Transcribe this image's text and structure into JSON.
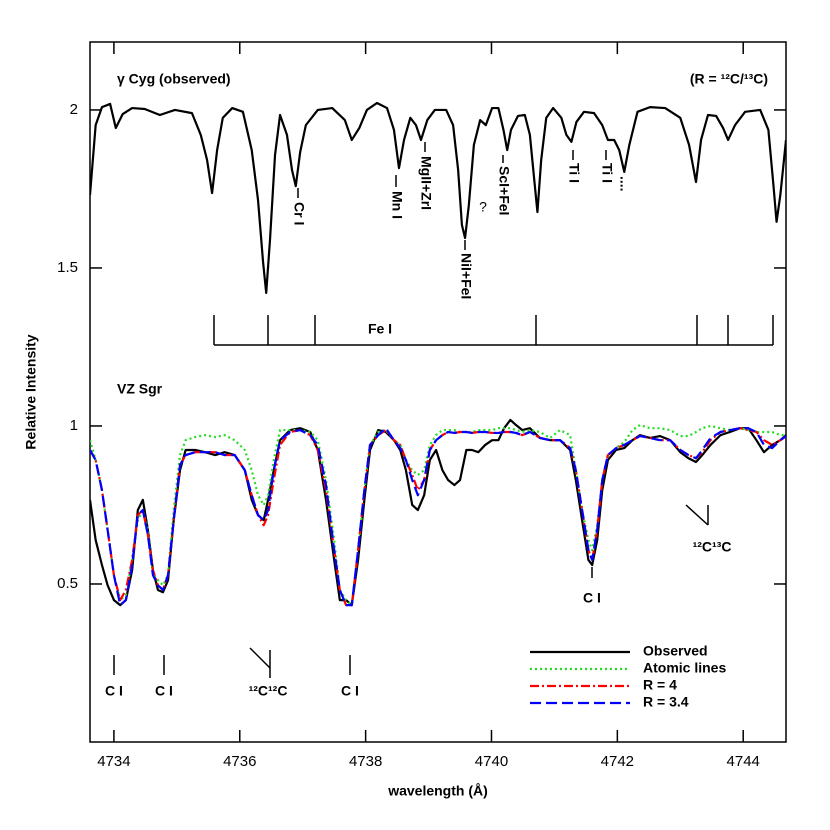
{
  "chart_data": {
    "type": "line",
    "xlabel": "wavelength (Å)",
    "ylabel": "Relative Intensity",
    "xlim": [
      4733.62,
      4744.68
    ],
    "ylim": [
      0,
      2.215
    ],
    "xticks": [
      4734,
      4736,
      4738,
      4740,
      4742,
      4744
    ],
    "yticks": [
      0.5,
      1,
      1.5,
      2
    ],
    "legend": "lower right",
    "annotations": [
      "γ Cyg (observed)",
      "(R = ¹²C/¹³C)",
      "Cr I",
      "Mn I",
      "MgII+ZrI",
      "NiI+FeI",
      "?",
      "ScI+FeI",
      "Ti I",
      "Ti I",
      "....",
      "Fe I",
      "VZ Sgr",
      "C I",
      "C I",
      "¹²C¹²C",
      "C I",
      "C I",
      "¹²C¹³C"
    ],
    "x": [
      4733.62,
      4733.71,
      4733.81,
      4733.9,
      4734.0,
      4734.1,
      4734.19,
      4734.29,
      4734.38,
      4734.46,
      4734.54,
      4734.62,
      4734.7,
      4734.78,
      4734.86,
      4734.95,
      4735.05,
      4735.14,
      4735.29,
      4735.45,
      4735.61,
      4735.76,
      4735.92,
      4736.08,
      4736.19,
      4736.29,
      4736.38,
      4736.45,
      4736.54,
      4736.64,
      4736.8,
      4736.96,
      4737.12,
      4737.24,
      4737.37,
      4737.5,
      4737.59,
      4737.69,
      4737.78,
      4737.88,
      4737.98,
      4738.07,
      4738.2,
      4738.32,
      4738.45,
      4738.55,
      4738.64,
      4738.74,
      4738.83,
      4738.93,
      4739.02,
      4739.12,
      4739.22,
      4739.31,
      4739.41,
      4739.5,
      4739.6,
      4739.69,
      4739.79,
      4739.9,
      4740.01,
      4740.11,
      4740.2,
      4740.3,
      4740.39,
      4740.49,
      4740.61,
      4740.77,
      4740.93,
      4741.09,
      4741.25,
      4741.34,
      4741.44,
      4741.54,
      4741.6,
      4741.68,
      4741.76,
      4741.85,
      4741.98,
      4742.11,
      4742.24,
      4742.36,
      4742.52,
      4742.68,
      4742.84,
      4743.0,
      4743.13,
      4743.25,
      4743.35,
      4743.48,
      4743.64,
      4743.79,
      4743.95,
      4744.08,
      4744.21,
      4744.33,
      4744.46,
      4744.59,
      4744.68
    ],
    "series": [
      {
        "color": "#000000",
        "dash": "solid",
        "x": [
          4733.62,
          4733.71,
          4733.81,
          4733.94,
          4734.03,
          4734.14,
          4734.29,
          4734.49,
          4734.73,
          4734.97,
          4735.24,
          4735.38,
          4735.48,
          4735.56,
          4735.64,
          4735.73,
          4735.88,
          4736.05,
          4736.19,
          4736.29,
          4736.37,
          4736.42,
          4736.48,
          4736.56,
          4736.64,
          4736.75,
          4736.83,
          4736.89,
          4736.96,
          4737.05,
          4737.24,
          4737.47,
          4737.67,
          4737.78,
          4737.9,
          4738.02,
          4738.18,
          4738.34,
          4738.45,
          4738.53,
          4738.61,
          4738.71,
          4738.8,
          4738.88,
          4738.98,
          4739.1,
          4739.28,
          4739.39,
          4739.47,
          4739.53,
          4739.58,
          4739.64,
          4739.72,
          4739.82,
          4739.91,
          4740.01,
          4740.11,
          4740.19,
          4740.25,
          4740.31,
          4740.42,
          4740.53,
          4740.61,
          4740.68,
          4740.73,
          4740.79,
          4740.87,
          4740.98,
          4741.11,
          4741.19,
          4741.27,
          4741.35,
          4741.47,
          4741.63,
          4741.76,
          4741.85,
          4741.95,
          4742.03,
          4742.11,
          4742.19,
          4742.32,
          4742.52,
          4742.76,
          4743.0,
          4743.14,
          4743.25,
          4743.33,
          4743.44,
          4743.57,
          4743.68,
          4743.76,
          4743.87,
          4744.03,
          4744.27,
          4744.4,
          4744.48,
          4744.53,
          4744.59,
          4744.68
        ],
        "values": [
          1.731,
          1.952,
          2.009,
          2.019,
          1.943,
          1.987,
          2.006,
          2.003,
          1.984,
          2.0,
          1.99,
          1.921,
          1.842,
          1.737,
          1.873,
          1.975,
          2.006,
          1.994,
          1.873,
          1.715,
          1.519,
          1.421,
          1.588,
          1.857,
          1.984,
          1.921,
          1.81,
          1.759,
          1.867,
          1.952,
          2.0,
          2.006,
          1.968,
          1.905,
          1.943,
          2.0,
          2.022,
          2.006,
          1.937,
          1.816,
          1.905,
          1.975,
          1.952,
          1.905,
          1.968,
          2.0,
          2.0,
          1.952,
          1.81,
          1.636,
          1.595,
          1.699,
          1.889,
          1.968,
          1.952,
          2.006,
          2.006,
          1.937,
          1.873,
          1.937,
          1.981,
          1.984,
          1.921,
          1.778,
          1.677,
          1.842,
          1.975,
          2.006,
          1.975,
          1.921,
          1.899,
          1.962,
          1.994,
          1.99,
          1.952,
          1.905,
          1.905,
          1.873,
          1.804,
          1.889,
          1.994,
          2.009,
          2.006,
          1.975,
          1.889,
          1.772,
          1.905,
          1.984,
          1.981,
          1.943,
          1.905,
          1.952,
          1.994,
          2.0,
          1.937,
          1.763,
          1.646,
          1.731,
          1.905
        ]
      },
      {
        "name": "Observed",
        "color": "#000000",
        "dash": "solid",
        "values": [
          0.766,
          0.639,
          0.56,
          0.496,
          0.449,
          0.433,
          0.449,
          0.544,
          0.734,
          0.766,
          0.671,
          0.544,
          0.481,
          0.474,
          0.512,
          0.702,
          0.86,
          0.924,
          0.924,
          0.917,
          0.908,
          0.917,
          0.908,
          0.86,
          0.766,
          0.718,
          0.702,
          0.766,
          0.86,
          0.955,
          0.987,
          0.993,
          0.981,
          0.924,
          0.766,
          0.576,
          0.449,
          0.449,
          0.433,
          0.576,
          0.766,
          0.924,
          0.987,
          0.981,
          0.955,
          0.924,
          0.86,
          0.75,
          0.734,
          0.781,
          0.892,
          0.924,
          0.86,
          0.829,
          0.813,
          0.829,
          0.924,
          0.924,
          0.917,
          0.94,
          0.955,
          0.955,
          0.993,
          1.019,
          1.003,
          0.987,
          0.993,
          0.962,
          0.955,
          0.955,
          0.924,
          0.829,
          0.702,
          0.576,
          0.56,
          0.639,
          0.797,
          0.892,
          0.924,
          0.93,
          0.955,
          0.971,
          0.962,
          0.968,
          0.955,
          0.917,
          0.898,
          0.886,
          0.908,
          0.94,
          0.971,
          0.981,
          0.993,
          0.993,
          0.955,
          0.917,
          0.94,
          0.955,
          0.971
        ]
      },
      {
        "name": "Atomic lines",
        "color": "#22dd22",
        "dash": "dotted",
        "values": [
          0.955,
          0.892,
          0.797,
          0.671,
          0.528,
          0.449,
          0.465,
          0.576,
          0.702,
          0.734,
          0.671,
          0.528,
          0.512,
          0.496,
          0.528,
          0.734,
          0.908,
          0.955,
          0.965,
          0.971,
          0.965,
          0.971,
          0.955,
          0.924,
          0.86,
          0.781,
          0.75,
          0.781,
          0.892,
          0.987,
          0.987,
          0.987,
          0.981,
          0.955,
          0.829,
          0.639,
          0.481,
          0.449,
          0.433,
          0.607,
          0.797,
          0.94,
          0.981,
          0.987,
          0.955,
          0.94,
          0.892,
          0.86,
          0.845,
          0.86,
          0.94,
          0.971,
          0.987,
          0.987,
          0.987,
          0.981,
          0.981,
          0.981,
          0.987,
          0.987,
          0.987,
          0.993,
          0.993,
          0.993,
          0.987,
          0.981,
          0.987,
          0.981,
          0.962,
          0.987,
          0.971,
          0.86,
          0.734,
          0.639,
          0.607,
          0.686,
          0.829,
          0.908,
          0.93,
          0.949,
          0.987,
          1.003,
          0.993,
          0.993,
          0.987,
          0.968,
          0.968,
          0.981,
          0.993,
          1.0,
          0.993,
          0.987,
          0.993,
          0.987,
          0.981,
          0.981,
          0.981,
          0.971,
          0.971
        ]
      },
      {
        "name": "R = 4",
        "color": "#ff0000",
        "dash": "dashdot",
        "values": [
          0.924,
          0.892,
          0.797,
          0.671,
          0.528,
          0.449,
          0.481,
          0.576,
          0.718,
          0.734,
          0.655,
          0.544,
          0.496,
          0.481,
          0.528,
          0.702,
          0.876,
          0.908,
          0.917,
          0.917,
          0.917,
          0.908,
          0.908,
          0.86,
          0.781,
          0.718,
          0.686,
          0.718,
          0.829,
          0.94,
          0.981,
          0.987,
          0.971,
          0.924,
          0.797,
          0.607,
          0.481,
          0.433,
          0.433,
          0.607,
          0.797,
          0.94,
          0.971,
          0.987,
          0.955,
          0.94,
          0.892,
          0.845,
          0.797,
          0.829,
          0.924,
          0.955,
          0.971,
          0.981,
          0.978,
          0.981,
          0.981,
          0.978,
          0.981,
          0.981,
          0.978,
          0.978,
          0.981,
          0.981,
          0.978,
          0.971,
          0.981,
          0.962,
          0.955,
          0.955,
          0.93,
          0.86,
          0.734,
          0.607,
          0.576,
          0.671,
          0.829,
          0.908,
          0.93,
          0.94,
          0.955,
          0.968,
          0.962,
          0.955,
          0.955,
          0.924,
          0.908,
          0.898,
          0.917,
          0.955,
          0.981,
          0.987,
          0.993,
          0.987,
          0.981,
          0.955,
          0.94,
          0.955,
          0.968
        ]
      },
      {
        "name": "R = 3.4",
        "color": "#0000ff",
        "dash": "dashed",
        "values": [
          0.924,
          0.892,
          0.797,
          0.671,
          0.528,
          0.433,
          0.449,
          0.56,
          0.718,
          0.734,
          0.655,
          0.528,
          0.496,
          0.481,
          0.528,
          0.702,
          0.876,
          0.908,
          0.917,
          0.917,
          0.917,
          0.908,
          0.908,
          0.86,
          0.781,
          0.718,
          0.702,
          0.734,
          0.86,
          0.955,
          0.981,
          0.987,
          0.971,
          0.94,
          0.813,
          0.607,
          0.481,
          0.433,
          0.433,
          0.607,
          0.797,
          0.94,
          0.971,
          0.993,
          0.955,
          0.93,
          0.892,
          0.829,
          0.781,
          0.829,
          0.924,
          0.955,
          0.971,
          0.981,
          0.978,
          0.981,
          0.981,
          0.978,
          0.981,
          0.981,
          0.978,
          0.978,
          0.981,
          0.981,
          0.978,
          0.971,
          0.981,
          0.962,
          0.955,
          0.955,
          0.93,
          0.86,
          0.734,
          0.607,
          0.576,
          0.671,
          0.829,
          0.908,
          0.93,
          0.94,
          0.955,
          0.968,
          0.962,
          0.955,
          0.955,
          0.924,
          0.908,
          0.898,
          0.924,
          0.962,
          0.981,
          0.987,
          0.993,
          0.993,
          0.981,
          0.94,
          0.93,
          0.955,
          0.968
        ]
      }
    ]
  }
}
